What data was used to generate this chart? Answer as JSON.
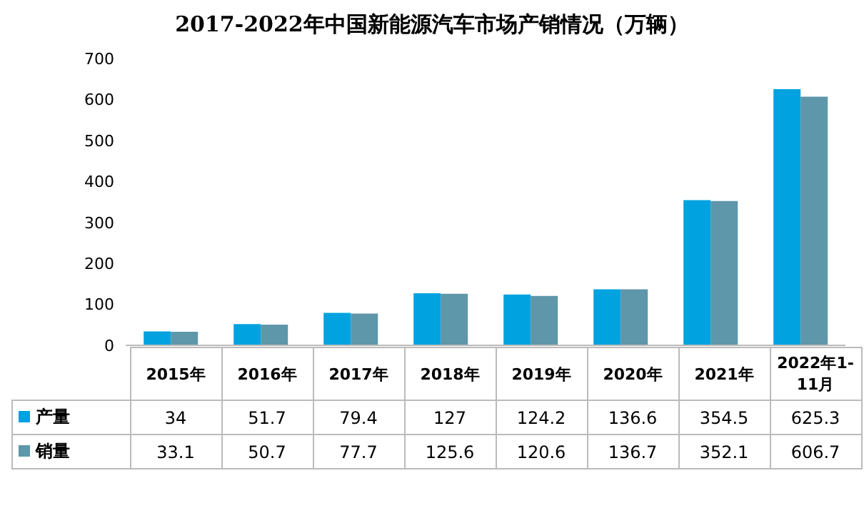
{
  "chart_data": {
    "type": "bar",
    "title": "2017-2022年中国新能源汽车市场产销情况（万辆）",
    "categories": [
      "2015年",
      "2016年",
      "2017年",
      "2018年",
      "2019年",
      "2020年",
      "2021年",
      "2022年1-11月"
    ],
    "series": [
      {
        "name": "产量",
        "color": "#00a2e0",
        "values": [
          34,
          51.7,
          79.4,
          127,
          124.2,
          136.6,
          354.5,
          625.3
        ]
      },
      {
        "name": "销量",
        "color": "#5e96aa",
        "values": [
          33.1,
          50.7,
          77.7,
          125.6,
          120.6,
          136.7,
          352.1,
          606.7
        ]
      }
    ],
    "ylim": [
      0,
      700
    ],
    "yticks": [
      0,
      100,
      200,
      300,
      400,
      500,
      600,
      700
    ],
    "grid": false,
    "legend": "bottom",
    "data_labels": true
  }
}
